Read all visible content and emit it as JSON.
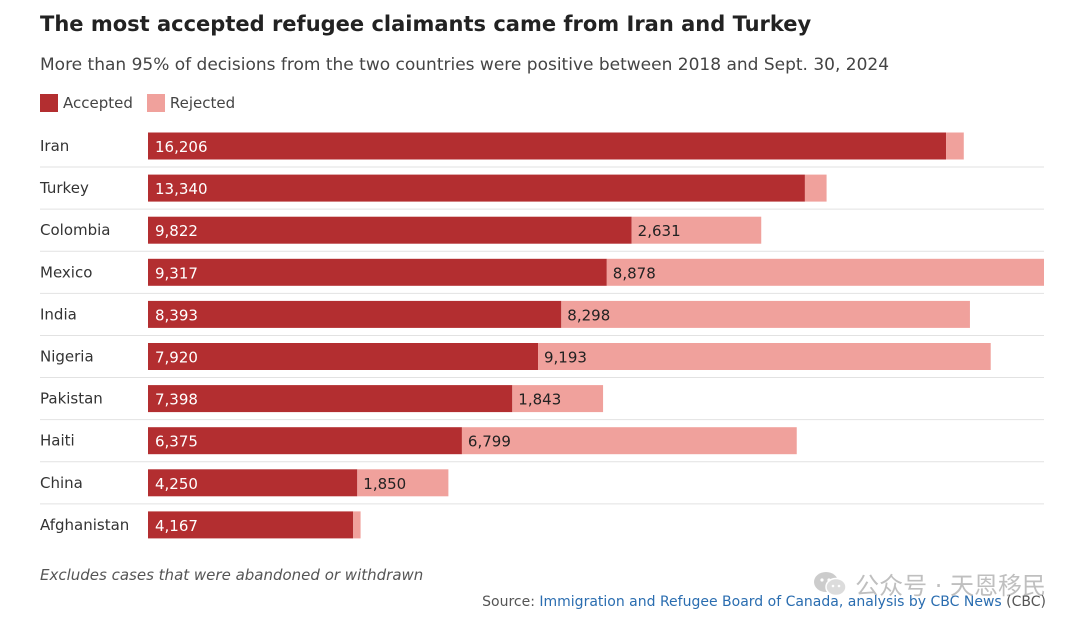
{
  "title": "The most accepted refugee claimants came from Iran and Turkey",
  "subtitle": "More than 95% of decisions from the two countries were positive between 2018 and Sept. 30, 2024",
  "legend": {
    "accepted": "Accepted",
    "rejected": "Rejected"
  },
  "colors": {
    "accepted": "#b32e30",
    "rejected": "#f0a19c",
    "divider": "#e2e2e2"
  },
  "note": "Excludes cases that were abandoned or withdrawn",
  "source": {
    "prefix": "Source:",
    "link": "Immigration and Refugee Board of Canada, analysis by CBC News",
    "suffix": "(CBC)"
  },
  "watermark": {
    "icon": "wechat-icon",
    "text": "公众号 · 天恩移民"
  },
  "chart_data": {
    "type": "bar",
    "orientation": "horizontal",
    "stacked": true,
    "title": "The most accepted refugee claimants came from Iran and Turkey",
    "categories": [
      "Iran",
      "Turkey",
      "Colombia",
      "Mexico",
      "India",
      "Nigeria",
      "Pakistan",
      "Haiti",
      "China",
      "Afghanistan"
    ],
    "series": [
      {
        "name": "Accepted",
        "values": [
          16206,
          13340,
          9822,
          9317,
          8393,
          7920,
          7398,
          6375,
          4250,
          4167
        ],
        "labels": [
          "16,206",
          "13,340",
          "9,822",
          "9,317",
          "8,393",
          "7,920",
          "7,398",
          "6,375",
          "4,250",
          "4,167"
        ]
      },
      {
        "name": "Rejected",
        "values": [
          360,
          440,
          2631,
          8878,
          8298,
          9193,
          1843,
          6799,
          1850,
          150
        ],
        "labels": [
          "",
          "",
          "2,631",
          "8,878",
          "8,298",
          "9,193",
          "1,843",
          "6,799",
          "1,850",
          ""
        ]
      }
    ],
    "xlim": [
      0,
      18195
    ],
    "grid": false,
    "legend": "top-left"
  }
}
